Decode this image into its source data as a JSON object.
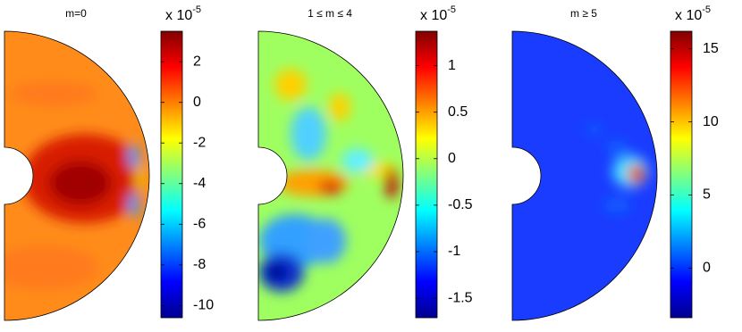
{
  "chart_data": [
    {
      "type": "heatmap",
      "title": "m=0",
      "colorbar_label": "x 10",
      "colorbar_exponent": "-5",
      "clim": [
        -10.6,
        3.5
      ],
      "cticks": [
        -10,
        -8,
        -6,
        -4,
        -2,
        0,
        2
      ]
    },
    {
      "type": "heatmap",
      "title": "1 ≤ m ≤ 4",
      "colorbar_label": "x 10",
      "colorbar_exponent": "-5",
      "clim": [
        -1.71,
        1.37
      ],
      "cticks": [
        -1.5,
        -1,
        -0.5,
        0,
        0.5,
        1
      ]
    },
    {
      "type": "heatmap",
      "title": "m ≥ 5",
      "colorbar_label": "x 10",
      "colorbar_exponent": "-5",
      "clim": [
        -3.4,
        16.2
      ],
      "cticks": [
        0,
        5,
        10,
        15
      ]
    }
  ]
}
